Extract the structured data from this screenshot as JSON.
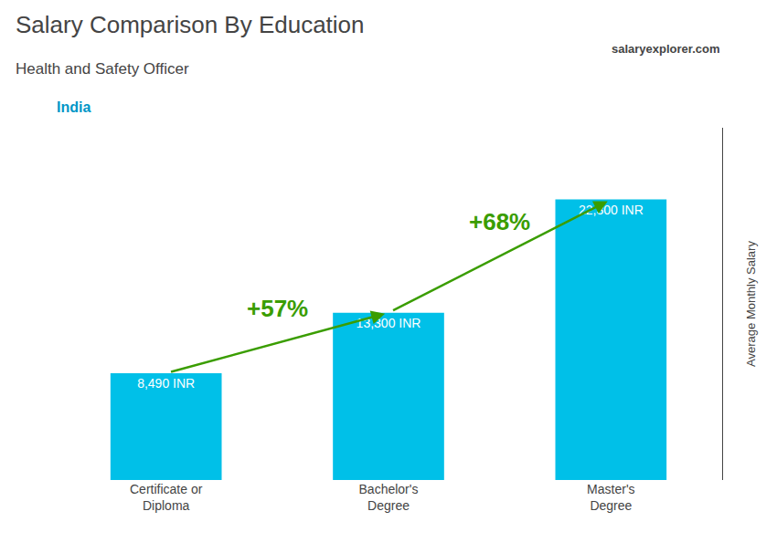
{
  "chart_data": {
    "type": "bar",
    "title": "Salary Comparison By Education",
    "subtitle": "Health and Safety Officer",
    "ylabel": "Average Monthly Salary",
    "annotations": [
      "India",
      "salaryexplorer.com",
      "+57%",
      "+68%"
    ],
    "categories": [
      "Certificate or\nDiploma",
      "Bachelor's\nDegree",
      "Master's\nDegree"
    ],
    "values": [
      8490,
      13300,
      22300
    ],
    "value_labels": [
      "8,490 INR",
      "13,300 INR",
      "22,300 INR"
    ],
    "data_labels": true,
    "color": "#00C0E8",
    "ylim": [
      0,
      28000
    ],
    "yticks": [],
    "tick_labels": "x",
    "grid": false
  }
}
